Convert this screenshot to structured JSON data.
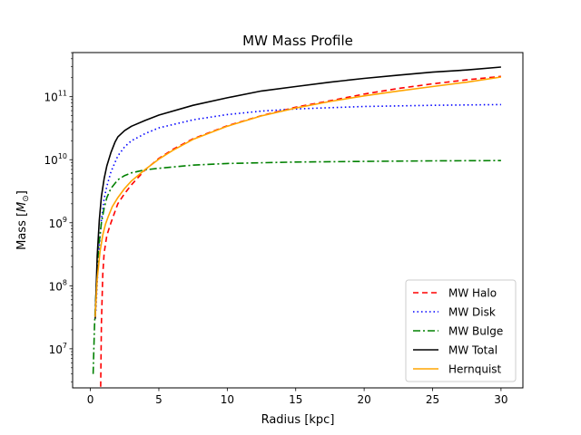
{
  "chart_data": {
    "type": "line",
    "title": "MW Mass Profile",
    "xlabel": "Radius [kpc]",
    "ylabel_main": "Mass [",
    "ylabel_symbol": "M",
    "ylabel_sub": "⊙",
    "ylabel_close": "]",
    "xlim": [
      -1.3,
      31.6
    ],
    "ylim_log10": [
      6.38,
      11.7
    ],
    "y_scale": "log",
    "grid": false,
    "legend_position": "lower right",
    "xticks": [
      {
        "value": 0,
        "label": "0"
      },
      {
        "value": 5,
        "label": "5"
      },
      {
        "value": 10,
        "label": "10"
      },
      {
        "value": 15,
        "label": "15"
      },
      {
        "value": 20,
        "label": "20"
      },
      {
        "value": 25,
        "label": "25"
      },
      {
        "value": 30,
        "label": "30"
      }
    ],
    "yticks": [
      {
        "log10": 7,
        "base": "10",
        "exp": "7"
      },
      {
        "log10": 8,
        "base": "10",
        "exp": "8"
      },
      {
        "log10": 9,
        "base": "10",
        "exp": "9"
      },
      {
        "log10": 10,
        "base": "10",
        "exp": "10"
      },
      {
        "log10": 11,
        "base": "10",
        "exp": "11"
      }
    ],
    "series": [
      {
        "name": "MW Halo",
        "color": "#ff0000",
        "dash": "6,4",
        "x": [
          0.75,
          0.8,
          0.9,
          1.0,
          1.2,
          1.5,
          2.0,
          2.5,
          3.0,
          4.0,
          5.0,
          6.0,
          7.5,
          10.0,
          12.5,
          15.0,
          17.5,
          20.0,
          22.5,
          25.0,
          27.5,
          30.0
        ],
        "y": [
          2500000.0,
          25000000.0,
          150000000.0,
          330000000.0,
          630000000.0,
          1000000000.0,
          2000000000.0,
          2900000000.0,
          4000000000.0,
          6900000000.0,
          10500000000.0,
          14500000000.0,
          21500000000.0,
          34500000000.0,
          50000000000.0,
          68000000000.0,
          86000000000.0,
          110000000000.0,
          135000000000.0,
          160000000000.0,
          185000000000.0,
          210000000000.0
        ]
      },
      {
        "name": "MW Disk",
        "color": "#0000ff",
        "dash": "1.5,3",
        "x": [
          0.4,
          0.6,
          0.8,
          1.0,
          1.2,
          1.5,
          2.0,
          2.5,
          3.0,
          4.0,
          5.0,
          7.5,
          10.0,
          12.5,
          15.0,
          20.0,
          25.0,
          30.0
        ],
        "y": [
          40000000.0,
          300000000.0,
          1100000000.0,
          2400000000.0,
          3800000000.0,
          6400000000.0,
          11500000000.0,
          16000000000.0,
          20000000000.0,
          26000000000.0,
          32000000000.0,
          43000000000.0,
          52000000000.0,
          59000000000.0,
          64000000000.0,
          70000000000.0,
          73000000000.0,
          75000000000.0
        ]
      },
      {
        "name": "MW Bulge",
        "color": "#008000",
        "dash": "8,3,2,3",
        "x": [
          0.2,
          0.3,
          0.45,
          0.6,
          0.8,
          1.0,
          1.2,
          1.5,
          2.0,
          2.5,
          3.0,
          4.0,
          5.0,
          7.5,
          10.0,
          15.0,
          20.0,
          25.0,
          30.0
        ],
        "y": [
          4000000.0,
          23000000.0,
          120000000.0,
          400000000.0,
          1000000000.0,
          1700000000.0,
          2500000000.0,
          3500000000.0,
          4800000000.0,
          5600000000.0,
          6200000000.0,
          6900000000.0,
          7300000000.0,
          8200000000.0,
          8700000000.0,
          9200000000.0,
          9400000000.0,
          9600000000.0,
          9700000000.0
        ]
      },
      {
        "name": "MW Total",
        "color": "#000000",
        "dash": "",
        "x": [
          0.35,
          0.5,
          0.65,
          0.8,
          1.0,
          1.2,
          1.5,
          1.8,
          2.0,
          2.5,
          3.0,
          4.0,
          5.0,
          7.5,
          10.0,
          12.5,
          15.0,
          17.5,
          20.0,
          22.5,
          25.0,
          27.5,
          30.0
        ],
        "y": [
          30000000.0,
          300000000.0,
          1100000000.0,
          2600000000.0,
          5000000000.0,
          8000000000.0,
          13000000000.0,
          19000000000.0,
          23000000000.0,
          29000000000.0,
          34000000000.0,
          42000000000.0,
          51000000000.0,
          73000000000.0,
          96000000000.0,
          123000000000.0,
          145000000000.0,
          170000000000.0,
          195000000000.0,
          220000000000.0,
          245000000000.0,
          265000000000.0,
          295000000000.0
        ]
      },
      {
        "name": "Hernquist",
        "color": "#ffa500",
        "dash": "",
        "x": [
          0.35,
          0.5,
          0.7,
          0.9,
          1.1,
          1.3,
          1.6,
          2.0,
          2.5,
          3.0,
          4.0,
          5.0,
          6.0,
          7.5,
          10.0,
          12.5,
          15.0,
          17.5,
          20.0,
          22.5,
          25.0,
          27.5,
          30.0
        ],
        "y": [
          32000000.0,
          130000000.0,
          350000000.0,
          640000000.0,
          950000000.0,
          1250000000.0,
          1800000000.0,
          2500000000.0,
          3500000000.0,
          4600000000.0,
          7000000000.0,
          10200000000.0,
          14000000000.0,
          21000000000.0,
          34000000000.0,
          49500000000.0,
          66000000000.0,
          84000000000.0,
          103000000000.0,
          123000000000.0,
          145000000000.0,
          170000000000.0,
          205000000000.0
        ]
      }
    ]
  }
}
